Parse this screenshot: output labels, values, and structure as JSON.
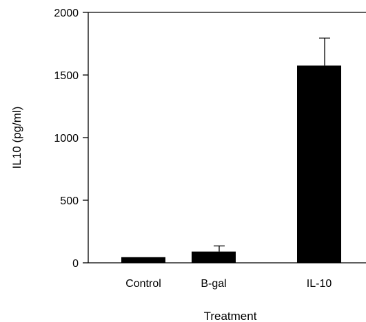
{
  "chart_data": {
    "type": "bar",
    "title": "",
    "xlabel": "Treatment",
    "ylabel": "IL10 (pg/ml)",
    "ylim": [
      0,
      2000
    ],
    "yticks": [
      0,
      500,
      1000,
      1500,
      2000
    ],
    "categories": [
      "Control",
      "B-gal",
      "IL-10"
    ],
    "values": [
      45,
      90,
      1575
    ],
    "error_upper": [
      0,
      135,
      1795
    ],
    "grid": false,
    "legend": "none"
  }
}
